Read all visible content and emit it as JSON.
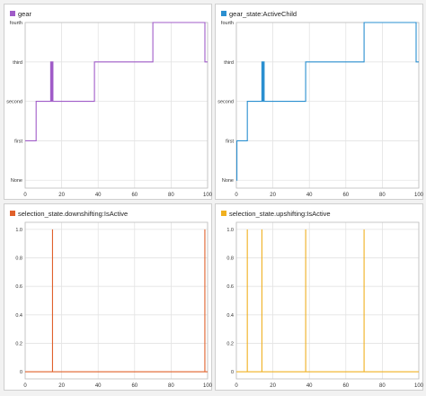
{
  "chart_data": [
    {
      "type": "line",
      "title": "",
      "legend": "top-left",
      "grid": true,
      "xlim": [
        0,
        100
      ],
      "x_ticks": [
        0,
        20,
        40,
        60,
        80,
        100
      ],
      "ylim": [
        -0.2,
        4.0
      ],
      "y_ticks": [
        0,
        1,
        2,
        3,
        4
      ],
      "y_tick_labels": [
        "None",
        "first",
        "second",
        "third",
        "fourth"
      ],
      "series": [
        {
          "name": "gear",
          "color": "#a05cc8",
          "steps": [
            [
              0,
              1
            ],
            [
              6,
              1
            ],
            [
              6,
              2
            ],
            [
              14,
              2
            ],
            [
              14,
              3
            ],
            [
              14.3,
              3
            ],
            [
              14.3,
              2
            ],
            [
              14.8,
              2
            ],
            [
              14.8,
              3
            ],
            [
              15.2,
              3
            ],
            [
              15.2,
              2
            ],
            [
              38,
              2
            ],
            [
              38,
              3
            ],
            [
              70,
              3
            ],
            [
              70,
              4
            ],
            [
              98.5,
              4
            ],
            [
              98.5,
              3
            ],
            [
              100,
              3
            ]
          ]
        }
      ]
    },
    {
      "type": "line",
      "title": "",
      "legend": "top-left",
      "grid": true,
      "xlim": [
        0,
        100
      ],
      "x_ticks": [
        0,
        20,
        40,
        60,
        80,
        100
      ],
      "ylim": [
        -0.2,
        4.0
      ],
      "y_ticks": [
        0,
        1,
        2,
        3,
        4
      ],
      "y_tick_labels": [
        "None",
        "first",
        "second",
        "third",
        "fourth"
      ],
      "series": [
        {
          "name": "gear_state:ActiveChild",
          "color": "#2a8fd0",
          "steps": [
            [
              0,
              0
            ],
            [
              0.3,
              0
            ],
            [
              0.3,
              1
            ],
            [
              6,
              1
            ],
            [
              6,
              2
            ],
            [
              14,
              2
            ],
            [
              14,
              3
            ],
            [
              14.3,
              3
            ],
            [
              14.3,
              2
            ],
            [
              14.8,
              2
            ],
            [
              14.8,
              3
            ],
            [
              15.2,
              3
            ],
            [
              15.2,
              2
            ],
            [
              38,
              2
            ],
            [
              38,
              3
            ],
            [
              70,
              3
            ],
            [
              70,
              4
            ],
            [
              98.5,
              4
            ],
            [
              98.5,
              3
            ],
            [
              100,
              3
            ]
          ]
        }
      ]
    },
    {
      "type": "line",
      "title": "",
      "legend": "top-left",
      "grid": true,
      "xlim": [
        0,
        100
      ],
      "x_ticks": [
        0,
        20,
        40,
        60,
        80,
        100
      ],
      "ylim": [
        -0.05,
        1.05
      ],
      "y_ticks": [
        0,
        0.2,
        0.4,
        0.6,
        0.8,
        1.0
      ],
      "y_tick_labels": [
        "0",
        "0.2",
        "0.4",
        "0.6",
        "0.8",
        "1.0"
      ],
      "series": [
        {
          "name": "selection_state.downshifting:IsActive",
          "color": "#e0602a",
          "pulses": [
            15,
            98.5
          ]
        }
      ]
    },
    {
      "type": "line",
      "title": "",
      "legend": "top-left",
      "grid": true,
      "xlim": [
        0,
        100
      ],
      "x_ticks": [
        0,
        20,
        40,
        60,
        80,
        100
      ],
      "ylim": [
        -0.05,
        1.05
      ],
      "y_ticks": [
        0,
        0.2,
        0.4,
        0.6,
        0.8,
        1.0
      ],
      "y_tick_labels": [
        "0",
        "0.2",
        "0.4",
        "0.6",
        "0.8",
        "1.0"
      ],
      "series": [
        {
          "name": "selection_state.upshifting:IsActive",
          "color": "#f0b020",
          "pulses": [
            6,
            14,
            38,
            70
          ]
        }
      ]
    }
  ]
}
